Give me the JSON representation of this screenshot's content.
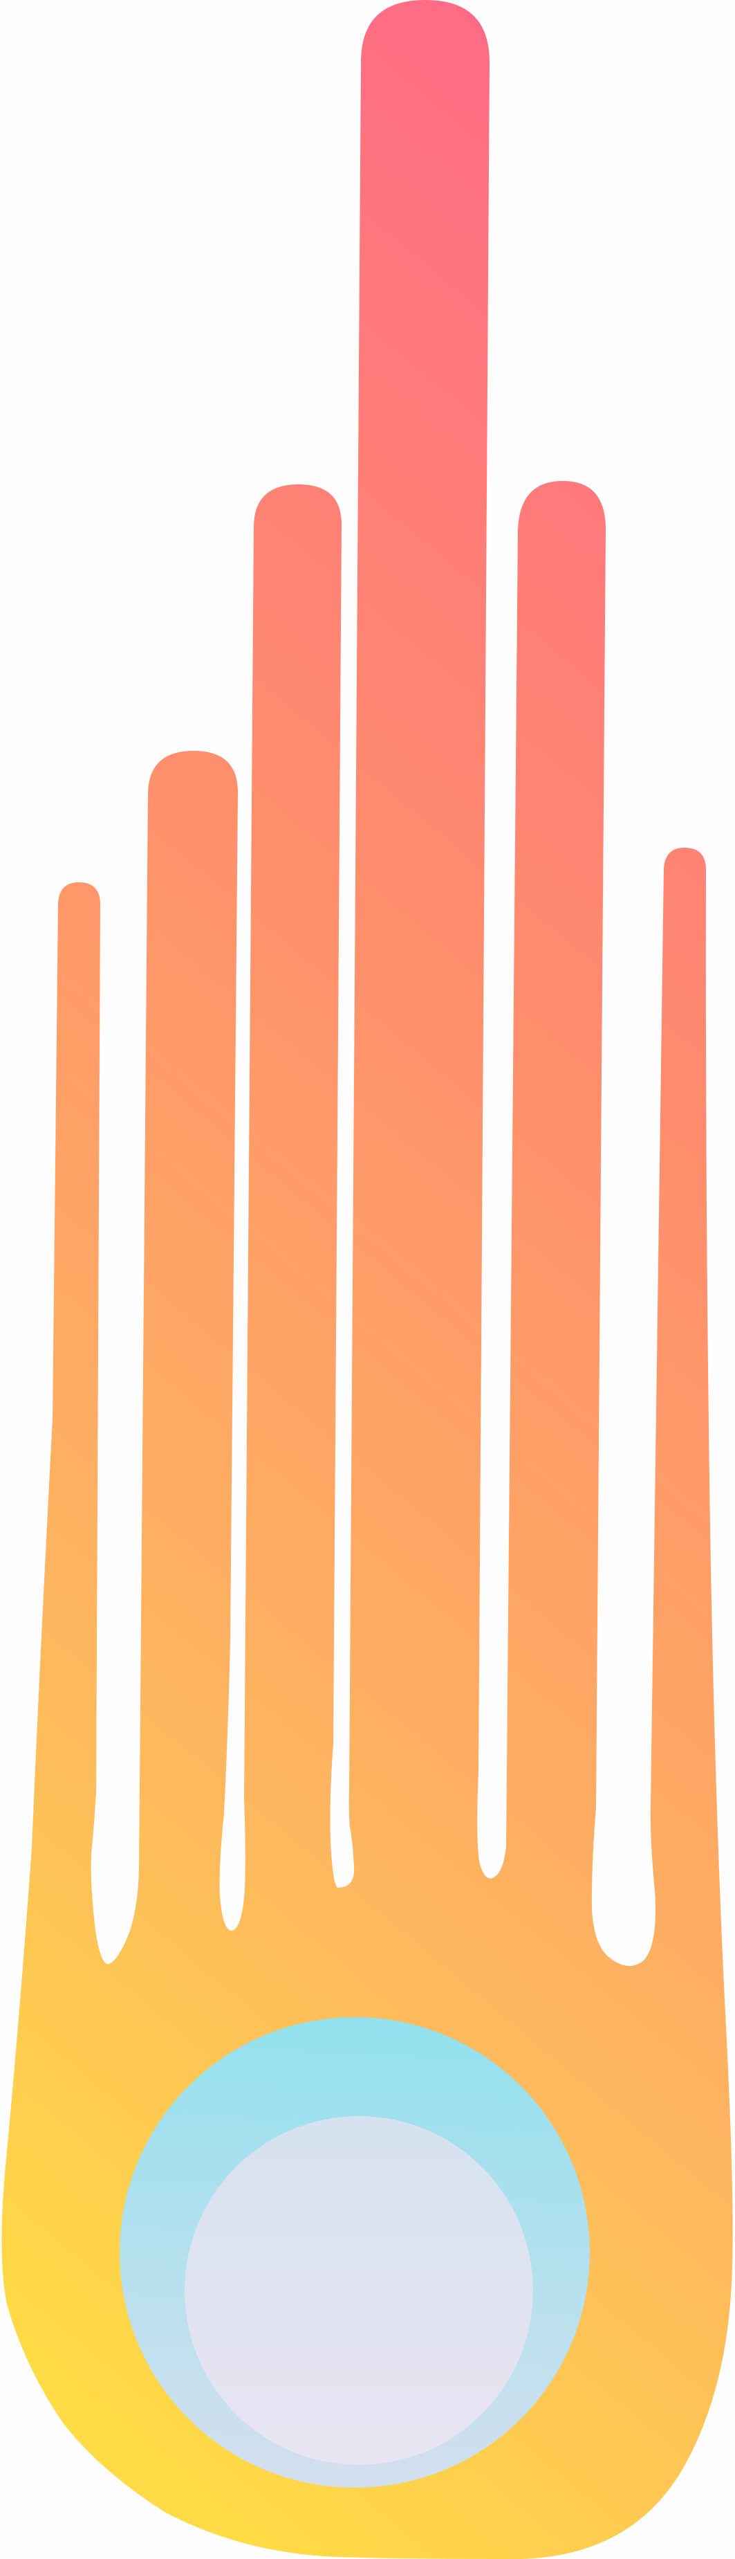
{
  "illustration": {
    "name": "comet",
    "colors": {
      "background": "#fdfdfd",
      "tail_top": "#ff6b85",
      "tail_upper_mid": "#ff8d6d",
      "tail_lower_mid": "#feb65f",
      "tail_bottom": "#ffdb45",
      "orb_top": "#92e1ee",
      "orb_bottom": "#d4dfee",
      "core_top": "#d6e2ef",
      "core_bottom": "#e9e4f2"
    }
  }
}
